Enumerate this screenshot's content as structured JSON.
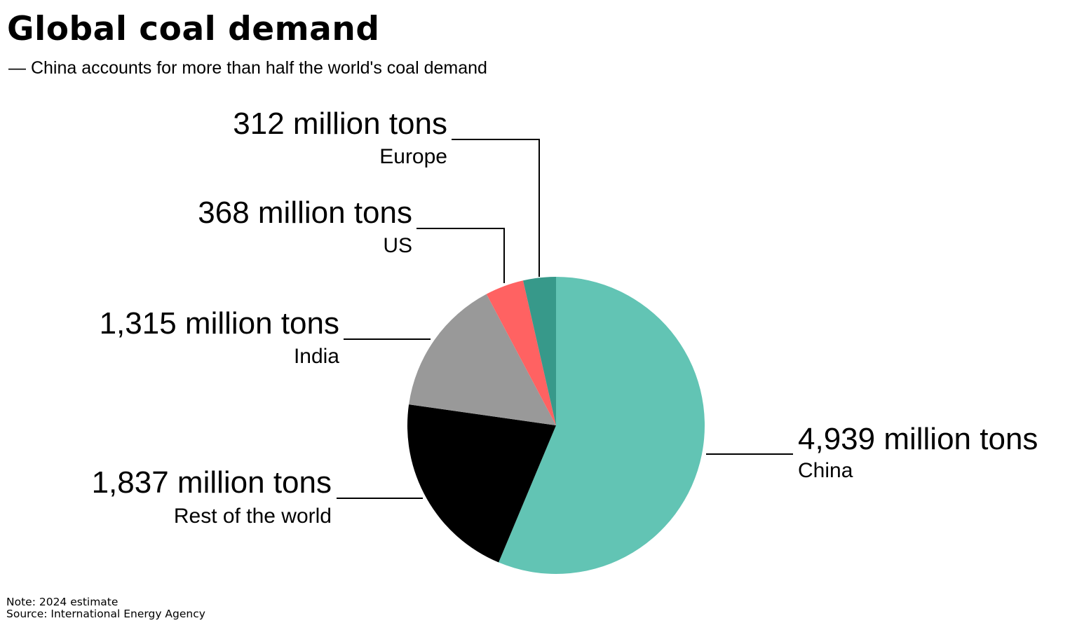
{
  "title": "Global coal demand",
  "subtitle": "— China accounts for more than half the world's coal demand",
  "note": "Note: 2024 estimate",
  "source": "Source: International Energy Agency",
  "chart_data": {
    "type": "pie",
    "unit": "million tons",
    "slices": [
      {
        "category": "China",
        "value": 4939,
        "value_label": "4,939 million tons",
        "color": "#62C4B4"
      },
      {
        "category": "Rest of the world",
        "value": 1837,
        "value_label": "1,837 million tons",
        "color": "#000000"
      },
      {
        "category": "India",
        "value": 1315,
        "value_label": "1,315 million tons",
        "color": "#999999"
      },
      {
        "category": "US",
        "value": 368,
        "value_label": "368 million tons",
        "color": "#FF6262"
      },
      {
        "category": "Europe",
        "value": 312,
        "value_label": "312 million tons",
        "color": "#37998A"
      }
    ],
    "legend": "none",
    "start_angle": "12 o'clock",
    "direction": "clockwise"
  }
}
